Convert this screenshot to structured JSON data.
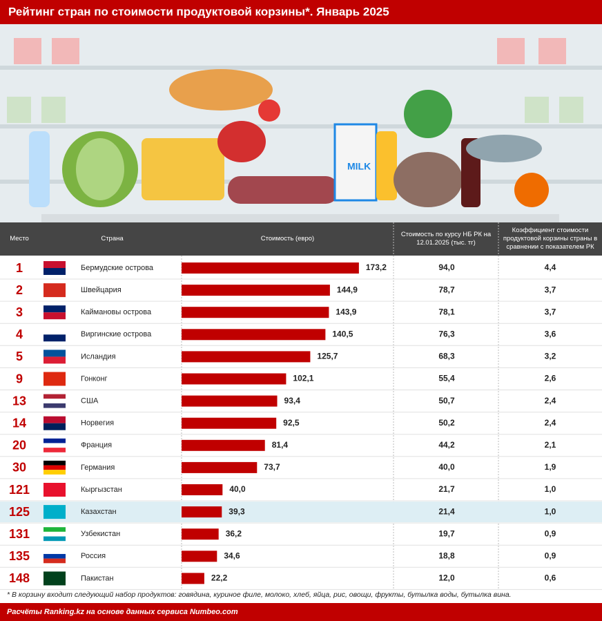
{
  "title": "Рейтинг стран по стоимости продуктовой корзины*. Январь 2025",
  "table": {
    "headers": [
      "Место",
      "Страна",
      "Стоимость (евро)",
      "Стоимость по курсу НБ РК на 12.01.2025 (тыс. тг)",
      "Коэффициент стоимости продуктовой корзины страны в сравнении с показателем РК"
    ],
    "rows": [
      [
        1,
        "94,0",
        "4,4"
      ],
      [
        2,
        "78,7",
        "3,7"
      ],
      [
        3,
        "78,1",
        "3,7"
      ],
      [
        4,
        "76,3",
        "3,6"
      ],
      [
        5,
        "68,3",
        "3,2"
      ],
      [
        9,
        "55,4",
        "2,6"
      ],
      [
        13,
        "50,7",
        "2,4"
      ],
      [
        14,
        "50,2",
        "2,4"
      ],
      [
        20,
        "44,2",
        "2,1"
      ],
      [
        30,
        "40,0",
        "1,9"
      ],
      [
        121,
        "21,7",
        "1,0"
      ],
      [
        125,
        "21,4",
        "1,0"
      ],
      [
        131,
        "19,7",
        "0,9"
      ],
      [
        135,
        "18,8",
        "0,9"
      ],
      [
        148,
        "12,0",
        "0,6"
      ]
    ]
  },
  "chart_data": {
    "type": "bar",
    "categories": [
      "Бермудские острова",
      "Швейцария",
      "Каймановы острова",
      "Виргинские острова",
      "Исландия",
      "Гонконг",
      "США",
      "Норвегия",
      "Франция",
      "Германия",
      "Кыргызстан",
      "Казахстан",
      "Узбекистан",
      "Россия",
      "Пакистан"
    ],
    "values": [
      173.2,
      144.9,
      143.9,
      140.5,
      125.7,
      102.1,
      93.4,
      92.5,
      81.4,
      73.7,
      40.0,
      39.3,
      36.2,
      34.6,
      22.2
    ],
    "value_labels": [
      "173,2",
      "144,9",
      "143,9",
      "140,5",
      "125,7",
      "102,1",
      "93,4",
      "92,5",
      "81,4",
      "73,7",
      "40,0",
      "39,3",
      "36,2",
      "34,6",
      "22,2"
    ],
    "color": "#c00000",
    "xlim": [
      0,
      207
    ]
  },
  "footnote": "* В корзину входит следующий набор продуктов: говядина, куриное филе, молоко, хлеб, яйца, рис, овощи, фрукты, бутылка воды, бутылка вина.",
  "source": "Расчёты Ranking.kz на основе данных сервиса Numbeo.com"
}
